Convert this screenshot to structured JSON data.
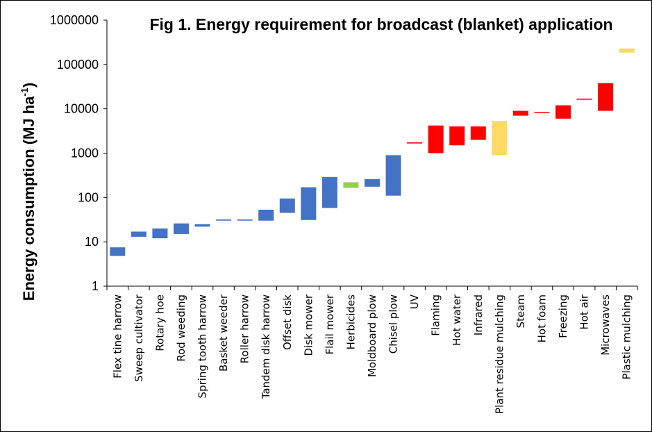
{
  "chart_data": {
    "type": "floating-bar",
    "title": "Fig 1. Energy requirement for broadcast (blanket) application",
    "ylabel_main": "Energy consumption (MJ ha",
    "ylabel_sup": "-1",
    "ylabel_close": ")",
    "xlabel": "",
    "yscale": "log",
    "ylim": [
      1,
      1000000
    ],
    "yticks": [
      "1",
      "10",
      "100",
      "1000",
      "10000",
      "100000",
      "1000000"
    ],
    "grid": false,
    "colors": {
      "blue": "#4472C4",
      "green": "#92D050",
      "red": "#FF0000",
      "yellow": "#FFD966"
    },
    "categories": [
      "Flex tine harrow",
      "Sweep cultivator",
      "Rotary hoe",
      "Rod weeding",
      "Spring tooth harrow",
      "Basket weeder",
      "Roller harrow",
      "Tandem disk harrow",
      "Offset disk",
      "Disk mower",
      "Flail mower",
      "Herbicides",
      "Moldboard plow",
      "Chisel plow",
      "UV",
      "Flaming",
      "Hot water",
      "Infrared",
      "Plant residue mulching",
      "Steam",
      "Hot foam",
      "Freezing",
      "Hot air",
      "Microwaves",
      "Plastic mulching"
    ],
    "ranges": [
      {
        "low": 4.8,
        "high": 7.5,
        "color": "blue"
      },
      {
        "low": 13,
        "high": 17,
        "color": "blue"
      },
      {
        "low": 12,
        "high": 20,
        "color": "blue"
      },
      {
        "low": 15,
        "high": 26,
        "color": "blue"
      },
      {
        "low": 22,
        "high": 25,
        "color": "blue"
      },
      {
        "low": 30,
        "high": 32,
        "color": "blue"
      },
      {
        "low": 30,
        "high": 32,
        "color": "blue"
      },
      {
        "low": 30,
        "high": 53,
        "color": "blue"
      },
      {
        "low": 45,
        "high": 95,
        "color": "blue"
      },
      {
        "low": 31,
        "high": 170,
        "color": "blue"
      },
      {
        "low": 58,
        "high": 290,
        "color": "blue"
      },
      {
        "low": 165,
        "high": 220,
        "color": "green"
      },
      {
        "low": 175,
        "high": 260,
        "color": "blue"
      },
      {
        "low": 110,
        "high": 900,
        "color": "blue"
      },
      {
        "low": 1650,
        "high": 1750,
        "color": "red"
      },
      {
        "low": 1000,
        "high": 4200,
        "color": "red"
      },
      {
        "low": 1500,
        "high": 4000,
        "color": "red"
      },
      {
        "low": 2000,
        "high": 4000,
        "color": "red"
      },
      {
        "low": 900,
        "high": 5300,
        "color": "yellow"
      },
      {
        "low": 7000,
        "high": 9000,
        "color": "red"
      },
      {
        "low": 8200,
        "high": 8500,
        "color": "red"
      },
      {
        "low": 6000,
        "high": 12000,
        "color": "red"
      },
      {
        "low": 16000,
        "high": 17000,
        "color": "red"
      },
      {
        "low": 9000,
        "high": 38000,
        "color": "red"
      },
      {
        "low": 185000,
        "high": 230000,
        "color": "yellow"
      }
    ]
  }
}
